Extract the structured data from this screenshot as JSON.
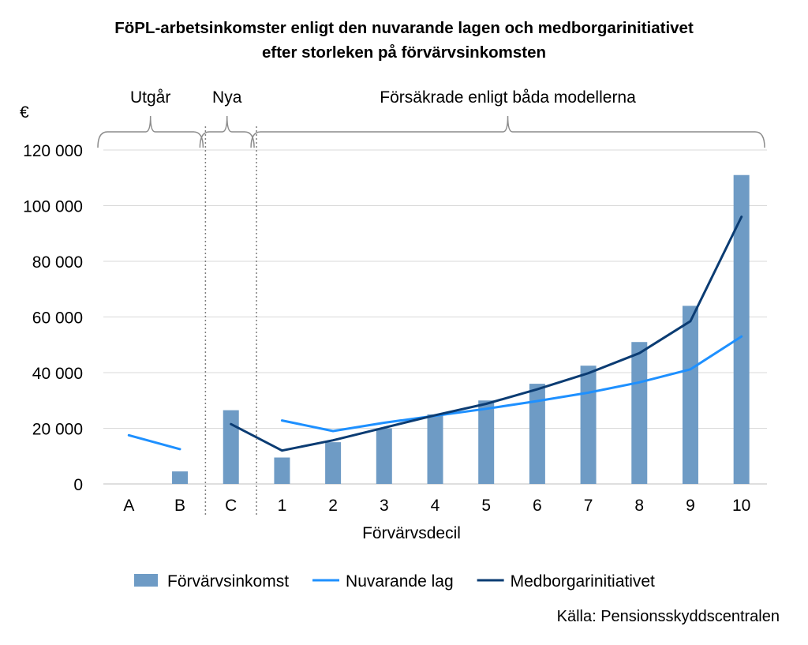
{
  "chart_data": {
    "type": "bar",
    "title": [
      "FöPL-arbetsinkomster enligt den nuvarande lagen och medborgarinitiativet",
      "efter storleken på förvärvsinkomsten"
    ],
    "unit_label": "€",
    "xlabel": "Förvärvsdecil",
    "ylabel": "",
    "ylim": [
      0,
      120000
    ],
    "y_ticks": [
      0,
      20000,
      40000,
      60000,
      80000,
      100000,
      120000
    ],
    "y_tick_labels": [
      "0",
      "20 000",
      "40 000",
      "60 000",
      "80 000",
      "100 000",
      "120 000"
    ],
    "categories": [
      "A",
      "B",
      "C",
      "1",
      "2",
      "3",
      "4",
      "5",
      "6",
      "7",
      "8",
      "9",
      "10"
    ],
    "groups": [
      {
        "label": "Utgår",
        "categories": [
          "A",
          "B"
        ]
      },
      {
        "label": "Nya",
        "categories": [
          "C"
        ]
      },
      {
        "label": "Försäkrade enligt båda modellerna",
        "categories": [
          "1",
          "2",
          "3",
          "4",
          "5",
          "6",
          "7",
          "8",
          "9",
          "10"
        ]
      }
    ],
    "series": [
      {
        "name": "Förvärvsinkomst",
        "kind": "bar",
        "color": "#6E9BC5",
        "values": [
          0,
          4500,
          26500,
          9500,
          15000,
          20000,
          25000,
          30000,
          36000,
          42500,
          51000,
          64000,
          111000
        ]
      },
      {
        "name": "Nuvarande lag",
        "kind": "line",
        "color": "#1E90FF",
        "values": [
          17500,
          12500,
          null,
          22800,
          19000,
          22000,
          24500,
          27000,
          29800,
          32800,
          36500,
          41200,
          53000
        ]
      },
      {
        "name": "Medborgarinitiativet",
        "kind": "line",
        "color": "#0B3C73",
        "values": [
          null,
          null,
          21500,
          12000,
          15700,
          20200,
          24700,
          28800,
          34000,
          39800,
          47000,
          58500,
          96000
        ]
      }
    ],
    "legend": {
      "position": "bottom"
    },
    "grid": true
  },
  "source": "Källa: Pensionsskyddscentralen"
}
